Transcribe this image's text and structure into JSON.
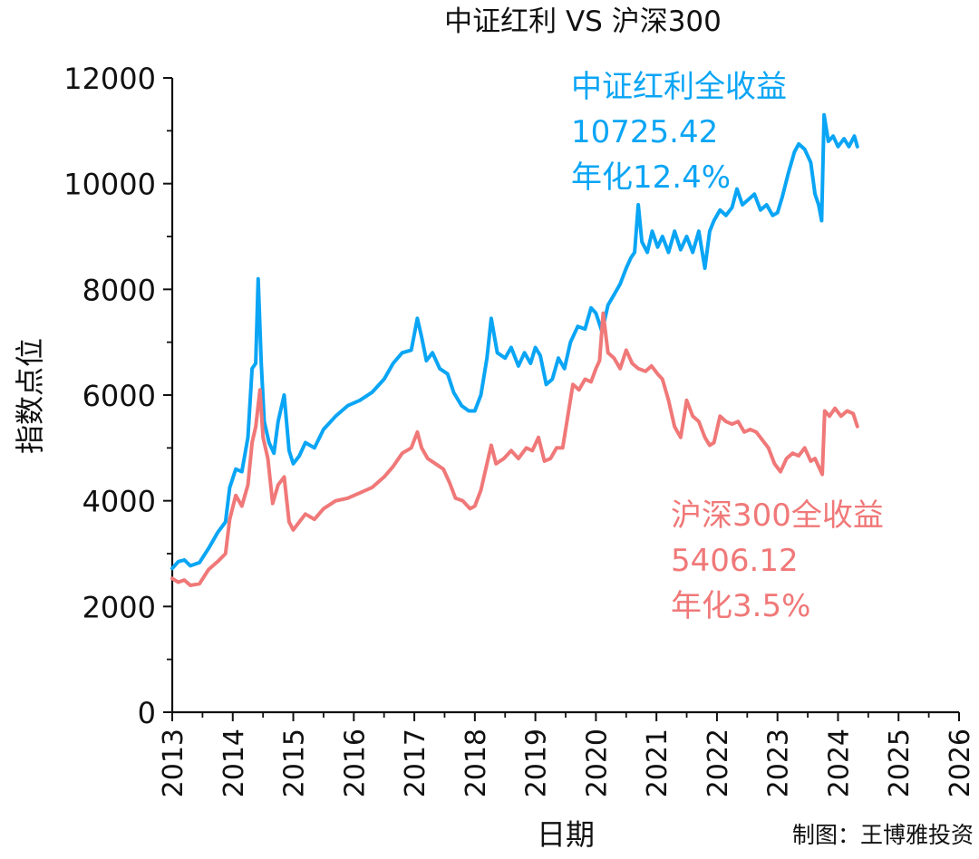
{
  "chart_data": {
    "type": "line",
    "title": "中证红利 VS 沪深300",
    "xlabel": "日期",
    "ylabel": "指数点位",
    "credit": "制图：王博雅投资",
    "xlim": [
      2013,
      2026
    ],
    "ylim": [
      0,
      12000
    ],
    "x_ticks": [
      "2013",
      "2014",
      "2015",
      "2016",
      "2017",
      "2018",
      "2019",
      "2020",
      "2021",
      "2022",
      "2023",
      "2024",
      "2025",
      "2026"
    ],
    "y_ticks": [
      "0",
      "2000",
      "4000",
      "6000",
      "8000",
      "10000",
      "12000"
    ],
    "grid": false,
    "series": [
      {
        "name": "中证红利全收益",
        "final_value": "10725.42",
        "annualized": "年化12.4%",
        "color": "#0aa5f5",
        "points": [
          [
            2013.0,
            2720
          ],
          [
            2013.1,
            2850
          ],
          [
            2013.2,
            2880
          ],
          [
            2013.3,
            2770
          ],
          [
            2013.45,
            2830
          ],
          [
            2013.6,
            3100
          ],
          [
            2013.75,
            3400
          ],
          [
            2013.88,
            3600
          ],
          [
            2013.95,
            4250
          ],
          [
            2014.05,
            4600
          ],
          [
            2014.15,
            4550
          ],
          [
            2014.25,
            5200
          ],
          [
            2014.32,
            6500
          ],
          [
            2014.38,
            6600
          ],
          [
            2014.42,
            8200
          ],
          [
            2014.47,
            6600
          ],
          [
            2014.52,
            5500
          ],
          [
            2014.6,
            5100
          ],
          [
            2014.68,
            4900
          ],
          [
            2014.75,
            5500
          ],
          [
            2014.85,
            6000
          ],
          [
            2014.93,
            4950
          ],
          [
            2015.0,
            4700
          ],
          [
            2015.1,
            4850
          ],
          [
            2015.2,
            5100
          ],
          [
            2015.35,
            5000
          ],
          [
            2015.5,
            5350
          ],
          [
            2015.7,
            5600
          ],
          [
            2015.9,
            5800
          ],
          [
            2016.1,
            5900
          ],
          [
            2016.3,
            6050
          ],
          [
            2016.5,
            6300
          ],
          [
            2016.65,
            6600
          ],
          [
            2016.8,
            6800
          ],
          [
            2016.95,
            6850
          ],
          [
            2017.05,
            7450
          ],
          [
            2017.12,
            7100
          ],
          [
            2017.2,
            6650
          ],
          [
            2017.3,
            6800
          ],
          [
            2017.42,
            6500
          ],
          [
            2017.55,
            6400
          ],
          [
            2017.65,
            6050
          ],
          [
            2017.78,
            5800
          ],
          [
            2017.9,
            5700
          ],
          [
            2018.0,
            5700
          ],
          [
            2018.1,
            6000
          ],
          [
            2018.2,
            6700
          ],
          [
            2018.27,
            7450
          ],
          [
            2018.37,
            6800
          ],
          [
            2018.5,
            6700
          ],
          [
            2018.6,
            6900
          ],
          [
            2018.72,
            6550
          ],
          [
            2018.82,
            6800
          ],
          [
            2018.92,
            6600
          ],
          [
            2019.0,
            6900
          ],
          [
            2019.08,
            6750
          ],
          [
            2019.18,
            6200
          ],
          [
            2019.28,
            6300
          ],
          [
            2019.38,
            6700
          ],
          [
            2019.48,
            6500
          ],
          [
            2019.58,
            7000
          ],
          [
            2019.7,
            7300
          ],
          [
            2019.82,
            7250
          ],
          [
            2019.92,
            7650
          ],
          [
            2020.0,
            7550
          ],
          [
            2020.1,
            7200
          ],
          [
            2020.2,
            7700
          ],
          [
            2020.3,
            7900
          ],
          [
            2020.4,
            8100
          ],
          [
            2020.5,
            8400
          ],
          [
            2020.58,
            8600
          ],
          [
            2020.64,
            8700
          ],
          [
            2020.7,
            9600
          ],
          [
            2020.76,
            8900
          ],
          [
            2020.85,
            8700
          ],
          [
            2020.93,
            9100
          ],
          [
            2021.02,
            8800
          ],
          [
            2021.1,
            9000
          ],
          [
            2021.2,
            8700
          ],
          [
            2021.3,
            9100
          ],
          [
            2021.4,
            8750
          ],
          [
            2021.5,
            9000
          ],
          [
            2021.6,
            8700
          ],
          [
            2021.7,
            9100
          ],
          [
            2021.8,
            8400
          ],
          [
            2021.88,
            9100
          ],
          [
            2021.95,
            9300
          ],
          [
            2022.05,
            9500
          ],
          [
            2022.15,
            9400
          ],
          [
            2022.25,
            9550
          ],
          [
            2022.33,
            9900
          ],
          [
            2022.42,
            9600
          ],
          [
            2022.52,
            9700
          ],
          [
            2022.62,
            9800
          ],
          [
            2022.72,
            9500
          ],
          [
            2022.82,
            9600
          ],
          [
            2022.92,
            9400
          ],
          [
            2023.0,
            9450
          ],
          [
            2023.08,
            9750
          ],
          [
            2023.18,
            10200
          ],
          [
            2023.28,
            10600
          ],
          [
            2023.35,
            10750
          ],
          [
            2023.45,
            10650
          ],
          [
            2023.55,
            10400
          ],
          [
            2023.62,
            9800
          ],
          [
            2023.68,
            9600
          ],
          [
            2023.73,
            9300
          ],
          [
            2023.77,
            11300
          ],
          [
            2023.84,
            10800
          ],
          [
            2023.92,
            10900
          ],
          [
            2024.0,
            10700
          ],
          [
            2024.1,
            10850
          ],
          [
            2024.18,
            10700
          ],
          [
            2024.27,
            10900
          ],
          [
            2024.32,
            10700
          ]
        ]
      },
      {
        "name": "沪深300全收益",
        "final_value": "5406.12",
        "annualized": "年化3.5%",
        "color": "#f07878",
        "points": [
          [
            2013.0,
            2530
          ],
          [
            2013.1,
            2460
          ],
          [
            2013.2,
            2500
          ],
          [
            2013.3,
            2400
          ],
          [
            2013.45,
            2430
          ],
          [
            2013.6,
            2700
          ],
          [
            2013.75,
            2850
          ],
          [
            2013.88,
            3000
          ],
          [
            2013.95,
            3650
          ],
          [
            2014.05,
            4100
          ],
          [
            2014.15,
            3900
          ],
          [
            2014.25,
            4300
          ],
          [
            2014.32,
            5100
          ],
          [
            2014.38,
            5400
          ],
          [
            2014.45,
            6100
          ],
          [
            2014.5,
            5200
          ],
          [
            2014.58,
            4800
          ],
          [
            2014.66,
            3950
          ],
          [
            2014.75,
            4300
          ],
          [
            2014.85,
            4450
          ],
          [
            2014.93,
            3600
          ],
          [
            2015.0,
            3450
          ],
          [
            2015.1,
            3600
          ],
          [
            2015.2,
            3750
          ],
          [
            2015.35,
            3650
          ],
          [
            2015.5,
            3850
          ],
          [
            2015.7,
            4000
          ],
          [
            2015.9,
            4050
          ],
          [
            2016.1,
            4150
          ],
          [
            2016.3,
            4250
          ],
          [
            2016.5,
            4450
          ],
          [
            2016.65,
            4650
          ],
          [
            2016.8,
            4900
          ],
          [
            2016.95,
            5000
          ],
          [
            2017.05,
            5300
          ],
          [
            2017.12,
            5000
          ],
          [
            2017.22,
            4800
          ],
          [
            2017.35,
            4700
          ],
          [
            2017.48,
            4600
          ],
          [
            2017.58,
            4350
          ],
          [
            2017.68,
            4050
          ],
          [
            2017.8,
            4000
          ],
          [
            2017.92,
            3850
          ],
          [
            2018.0,
            3900
          ],
          [
            2018.1,
            4200
          ],
          [
            2018.2,
            4700
          ],
          [
            2018.27,
            5050
          ],
          [
            2018.35,
            4700
          ],
          [
            2018.48,
            4800
          ],
          [
            2018.6,
            4950
          ],
          [
            2018.72,
            4800
          ],
          [
            2018.85,
            5000
          ],
          [
            2018.95,
            4950
          ],
          [
            2019.05,
            5200
          ],
          [
            2019.15,
            4750
          ],
          [
            2019.25,
            4800
          ],
          [
            2019.35,
            5000
          ],
          [
            2019.45,
            5000
          ],
          [
            2019.55,
            5700
          ],
          [
            2019.62,
            6200
          ],
          [
            2019.72,
            6100
          ],
          [
            2019.82,
            6300
          ],
          [
            2019.92,
            6250
          ],
          [
            2020.0,
            6500
          ],
          [
            2020.06,
            6650
          ],
          [
            2020.12,
            7550
          ],
          [
            2020.2,
            6800
          ],
          [
            2020.3,
            6700
          ],
          [
            2020.4,
            6500
          ],
          [
            2020.5,
            6850
          ],
          [
            2020.6,
            6600
          ],
          [
            2020.7,
            6500
          ],
          [
            2020.82,
            6450
          ],
          [
            2020.92,
            6550
          ],
          [
            2021.02,
            6400
          ],
          [
            2021.1,
            6300
          ],
          [
            2021.2,
            5900
          ],
          [
            2021.3,
            5400
          ],
          [
            2021.4,
            5200
          ],
          [
            2021.5,
            5900
          ],
          [
            2021.6,
            5600
          ],
          [
            2021.7,
            5500
          ],
          [
            2021.8,
            5200
          ],
          [
            2021.88,
            5050
          ],
          [
            2021.95,
            5100
          ],
          [
            2022.05,
            5600
          ],
          [
            2022.15,
            5500
          ],
          [
            2022.25,
            5450
          ],
          [
            2022.35,
            5500
          ],
          [
            2022.45,
            5300
          ],
          [
            2022.55,
            5350
          ],
          [
            2022.65,
            5300
          ],
          [
            2022.75,
            5150
          ],
          [
            2022.85,
            5000
          ],
          [
            2022.95,
            4700
          ],
          [
            2023.05,
            4550
          ],
          [
            2023.15,
            4800
          ],
          [
            2023.25,
            4900
          ],
          [
            2023.35,
            4850
          ],
          [
            2023.45,
            5000
          ],
          [
            2023.55,
            4750
          ],
          [
            2023.62,
            4800
          ],
          [
            2023.7,
            4600
          ],
          [
            2023.74,
            4500
          ],
          [
            2023.78,
            5700
          ],
          [
            2023.86,
            5600
          ],
          [
            2023.95,
            5750
          ],
          [
            2024.05,
            5600
          ],
          [
            2024.15,
            5700
          ],
          [
            2024.25,
            5650
          ],
          [
            2024.32,
            5406
          ]
        ]
      }
    ]
  }
}
